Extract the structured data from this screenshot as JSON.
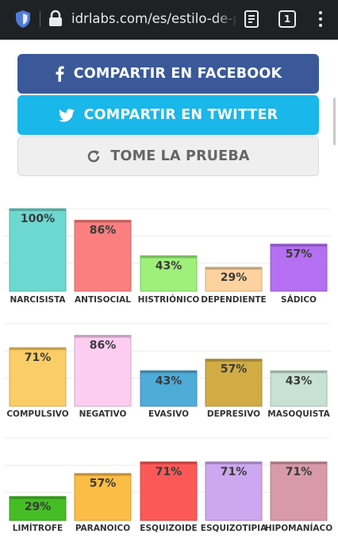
{
  "browser": {
    "url": "idrlabs.com/es/estilo-de-pe",
    "tab_count": "1",
    "icons": [
      "shield-icon",
      "lock-icon",
      "reader-mode-icon",
      "tab-switcher-icon",
      "more-menu-icon"
    ]
  },
  "buttons": {
    "facebook": "COMPARTIR EN FACEBOOK",
    "twitter": "COMPARTIR EN TWITTER",
    "take_test": "TOME LA PRUEBA"
  },
  "colors": {
    "facebook": "#3b5998",
    "twitter": "#1ab7ea"
  },
  "chart_data": {
    "type": "bar",
    "ylim": [
      0,
      100
    ],
    "unit": "%",
    "rows": [
      {
        "categories": [
          "NARCISISTA",
          "ANTISOCIAL",
          "HISTRIÓNICO",
          "DEPENDIENTE",
          "SÁDICO"
        ],
        "values": [
          100,
          86,
          43,
          29,
          57
        ],
        "labels": [
          "100%",
          "86%",
          "43%",
          "29%",
          "57%"
        ],
        "colors": [
          "#6dd8cf",
          "#fb7f7f",
          "#9ef07b",
          "#fdd29f",
          "#b46ff2"
        ]
      },
      {
        "categories": [
          "COMPULSIVO",
          "NEGATIVO",
          "EVASIVO",
          "DEPRESIVO",
          "MASOQUISTA"
        ],
        "values": [
          71,
          86,
          43,
          57,
          43
        ],
        "labels": [
          "71%",
          "86%",
          "43%",
          "57%",
          "43%"
        ],
        "colors": [
          "#fbcd66",
          "#fdcdf1",
          "#4eacd8",
          "#d1ac44",
          "#c7e2d4"
        ]
      },
      {
        "categories": [
          "LIMÍTROFE",
          "PARANOICO",
          "ESQUIZOIDE",
          "ESQUIZOTIPIA",
          "HIPOMANÍACO"
        ],
        "values": [
          29,
          57,
          71,
          71,
          71
        ],
        "labels": [
          "29%",
          "57%",
          "71%",
          "71%",
          "71%"
        ],
        "colors": [
          "#45bd25",
          "#fbbd46",
          "#fd5858",
          "#cda8f0",
          "#d89aa9"
        ]
      }
    ]
  }
}
